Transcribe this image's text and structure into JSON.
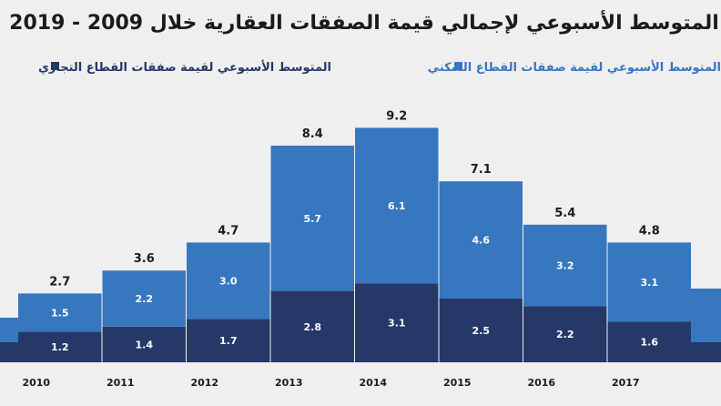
{
  "chart_data": {
    "type": "bar",
    "stacked": true,
    "title": "المتوسط الأسبوعي لإجمالي قيمة الصفقات العقارية خلال 2009 - 2019",
    "categories": [
      "2010",
      "2011",
      "2012",
      "2013",
      "2014",
      "2015",
      "2016",
      "2017"
    ],
    "series": [
      {
        "name": "المتوسط الأسبوعي لقيمة صفقات القطاع التجاري",
        "color": "#263868",
        "values": [
          1.2,
          1.4,
          1.7,
          2.8,
          3.1,
          2.5,
          2.2,
          1.6
        ]
      },
      {
        "name": "المتوسط الأسبوعي لقيمة صفقات القطاع السكني",
        "color": "#3777bf",
        "values": [
          1.5,
          2.2,
          3.0,
          5.7,
          6.1,
          4.6,
          3.2,
          3.1
        ]
      }
    ],
    "totals": [
      2.7,
      3.6,
      4.7,
      8.4,
      9.2,
      7.1,
      5.4,
      4.8
    ],
    "ylim": [
      0,
      9.5
    ],
    "grid": false,
    "legend_position": "top"
  }
}
